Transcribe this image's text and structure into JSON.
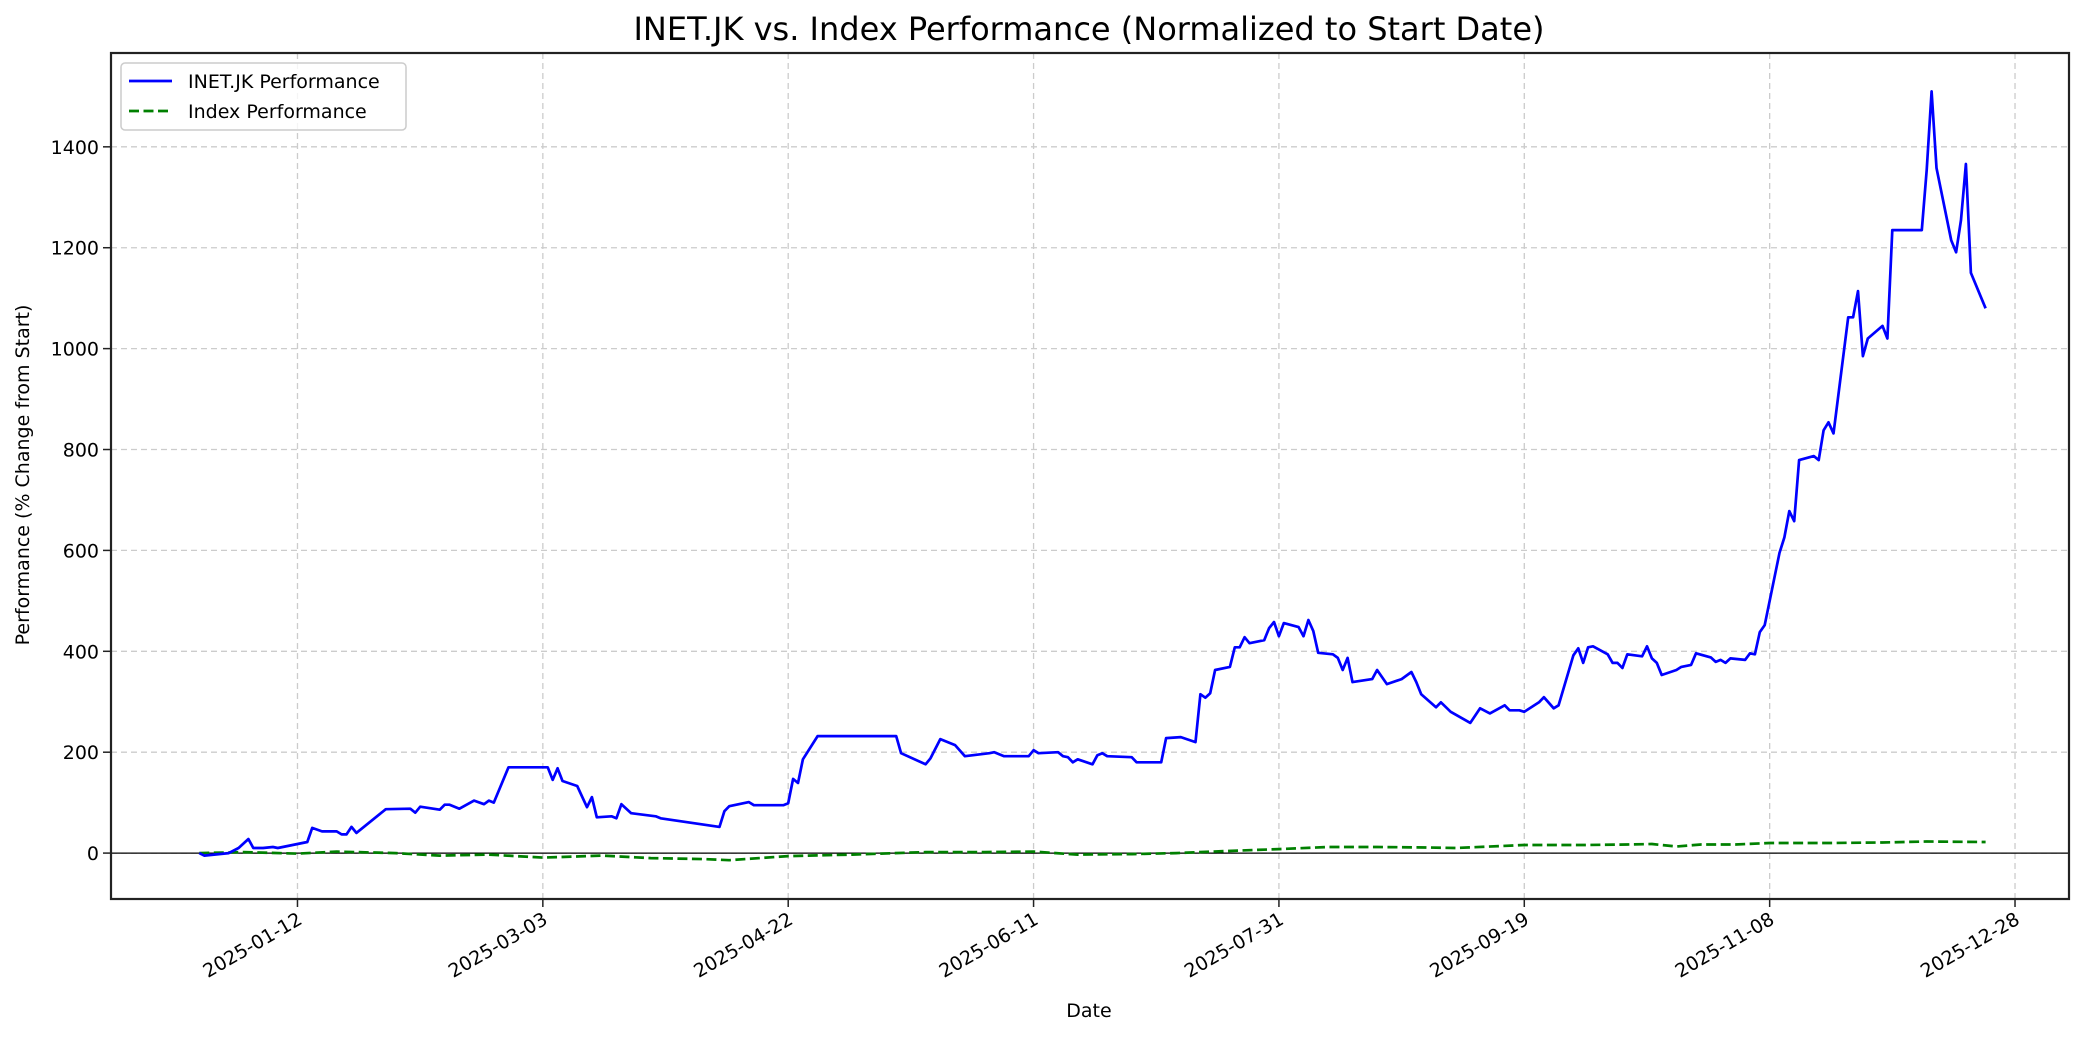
{
  "chart_data": {
    "type": "line",
    "title": "INET.JK vs. Index Performance (Normalized to Start Date)",
    "xlabel": "Date",
    "ylabel": "Performance (% Change from Start)",
    "xlim": [
      "2024-12-05",
      "2026-01-08"
    ],
    "ylim": [
      -91,
      1586
    ],
    "grid": true,
    "legend_position": "upper left",
    "x_ticks": [
      "2025-01-12",
      "2025-03-03",
      "2025-04-22",
      "2025-06-11",
      "2025-07-31",
      "2025-09-19",
      "2025-11-08",
      "2025-12-28"
    ],
    "y_ticks": [
      0,
      200,
      400,
      600,
      800,
      1000,
      1200,
      1400
    ],
    "zero_line": true,
    "series": [
      {
        "name": "INET.JK Performance",
        "color": "#0000ff",
        "style": "solid",
        "points": [
          [
            "2024-12-23",
            0
          ],
          [
            "2024-12-24",
            -5
          ],
          [
            "2024-12-29",
            0
          ],
          [
            "2024-12-31",
            10
          ],
          [
            "2025-01-02",
            28
          ],
          [
            "2025-01-03",
            10
          ],
          [
            "2025-01-05",
            10
          ],
          [
            "2025-01-07",
            12
          ],
          [
            "2025-01-08",
            10
          ],
          [
            "2025-01-12",
            18
          ],
          [
            "2025-01-14",
            22
          ],
          [
            "2025-01-15",
            50
          ],
          [
            "2025-01-17",
            43
          ],
          [
            "2025-01-20",
            43
          ],
          [
            "2025-01-21",
            37
          ],
          [
            "2025-01-22",
            37
          ],
          [
            "2025-01-23",
            52
          ],
          [
            "2025-01-24",
            40
          ],
          [
            "2025-01-30",
            87
          ],
          [
            "2025-02-04",
            88
          ],
          [
            "2025-02-05",
            80
          ],
          [
            "2025-02-06",
            92
          ],
          [
            "2025-02-10",
            86
          ],
          [
            "2025-02-11",
            96
          ],
          [
            "2025-02-12",
            96
          ],
          [
            "2025-02-14",
            88
          ],
          [
            "2025-02-17",
            104
          ],
          [
            "2025-02-19",
            97
          ],
          [
            "2025-02-20",
            104
          ],
          [
            "2025-02-21",
            100
          ],
          [
            "2025-02-24",
            170
          ],
          [
            "2025-03-04",
            170
          ],
          [
            "2025-03-05",
            145
          ],
          [
            "2025-03-06",
            168
          ],
          [
            "2025-03-07",
            143
          ],
          [
            "2025-03-10",
            133
          ],
          [
            "2025-03-12",
            91
          ],
          [
            "2025-03-13",
            111
          ],
          [
            "2025-03-14",
            71
          ],
          [
            "2025-03-17",
            73
          ],
          [
            "2025-03-18",
            69
          ],
          [
            "2025-03-19",
            97
          ],
          [
            "2025-03-21",
            79
          ],
          [
            "2025-03-26",
            73
          ],
          [
            "2025-03-27",
            69
          ],
          [
            "2025-04-08",
            52
          ],
          [
            "2025-04-09",
            83
          ],
          [
            "2025-04-10",
            93
          ],
          [
            "2025-04-14",
            101
          ],
          [
            "2025-04-15",
            95
          ],
          [
            "2025-04-21",
            95
          ],
          [
            "2025-04-22",
            99
          ],
          [
            "2025-04-23",
            147
          ],
          [
            "2025-04-24",
            139
          ],
          [
            "2025-04-25",
            186
          ],
          [
            "2025-04-28",
            232
          ],
          [
            "2025-05-14",
            232
          ],
          [
            "2025-05-15",
            198
          ],
          [
            "2025-05-20",
            176
          ],
          [
            "2025-05-21",
            188
          ],
          [
            "2025-05-23",
            226
          ],
          [
            "2025-05-26",
            214
          ],
          [
            "2025-05-28",
            192
          ],
          [
            "2025-06-02",
            198
          ],
          [
            "2025-06-03",
            200
          ],
          [
            "2025-06-05",
            192
          ],
          [
            "2025-06-10",
            192
          ],
          [
            "2025-06-11",
            204
          ],
          [
            "2025-06-12",
            198
          ],
          [
            "2025-06-16",
            200
          ],
          [
            "2025-06-17",
            192
          ],
          [
            "2025-06-18",
            190
          ],
          [
            "2025-06-19",
            180
          ],
          [
            "2025-06-20",
            186
          ],
          [
            "2025-06-23",
            176
          ],
          [
            "2025-06-24",
            194
          ],
          [
            "2025-06-25",
            198
          ],
          [
            "2025-06-26",
            192
          ],
          [
            "2025-07-01",
            190
          ],
          [
            "2025-07-02",
            180
          ],
          [
            "2025-07-07",
            180
          ],
          [
            "2025-07-08",
            228
          ],
          [
            "2025-07-11",
            230
          ],
          [
            "2025-07-14",
            220
          ],
          [
            "2025-07-15",
            315
          ],
          [
            "2025-07-16",
            308
          ],
          [
            "2025-07-17",
            317
          ],
          [
            "2025-07-18",
            363
          ],
          [
            "2025-07-21",
            369
          ],
          [
            "2025-07-22",
            408
          ],
          [
            "2025-07-23",
            408
          ],
          [
            "2025-07-24",
            428
          ],
          [
            "2025-07-25",
            416
          ],
          [
            "2025-07-28",
            422
          ],
          [
            "2025-07-29",
            446
          ],
          [
            "2025-07-30",
            458
          ],
          [
            "2025-07-31",
            430
          ],
          [
            "2025-08-01",
            456
          ],
          [
            "2025-08-04",
            448
          ],
          [
            "2025-08-05",
            430
          ],
          [
            "2025-08-06",
            462
          ],
          [
            "2025-08-07",
            440
          ],
          [
            "2025-08-08",
            397
          ],
          [
            "2025-08-11",
            394
          ],
          [
            "2025-08-12",
            387
          ],
          [
            "2025-08-13",
            363
          ],
          [
            "2025-08-14",
            387
          ],
          [
            "2025-08-15",
            339
          ],
          [
            "2025-08-19",
            345
          ],
          [
            "2025-08-20",
            363
          ],
          [
            "2025-08-22",
            335
          ],
          [
            "2025-08-25",
            345
          ],
          [
            "2025-08-27",
            359
          ],
          [
            "2025-08-28",
            339
          ],
          [
            "2025-08-29",
            315
          ],
          [
            "2025-09-01",
            289
          ],
          [
            "2025-09-02",
            299
          ],
          [
            "2025-09-04",
            280
          ],
          [
            "2025-09-08",
            258
          ],
          [
            "2025-09-10",
            287
          ],
          [
            "2025-09-12",
            277
          ],
          [
            "2025-09-15",
            293
          ],
          [
            "2025-09-16",
            283
          ],
          [
            "2025-09-18",
            283
          ],
          [
            "2025-09-19",
            280
          ],
          [
            "2025-09-22",
            299
          ],
          [
            "2025-09-23",
            309
          ],
          [
            "2025-09-25",
            287
          ],
          [
            "2025-09-26",
            293
          ],
          [
            "2025-09-29",
            392
          ],
          [
            "2025-09-30",
            406
          ],
          [
            "2025-10-01",
            377
          ],
          [
            "2025-10-02",
            408
          ],
          [
            "2025-10-03",
            410
          ],
          [
            "2025-10-06",
            394
          ],
          [
            "2025-10-07",
            377
          ],
          [
            "2025-10-08",
            377
          ],
          [
            "2025-10-09",
            367
          ],
          [
            "2025-10-10",
            394
          ],
          [
            "2025-10-13",
            390
          ],
          [
            "2025-10-14",
            410
          ],
          [
            "2025-10-15",
            386
          ],
          [
            "2025-10-16",
            377
          ],
          [
            "2025-10-17",
            353
          ],
          [
            "2025-10-20",
            363
          ],
          [
            "2025-10-21",
            369
          ],
          [
            "2025-10-23",
            373
          ],
          [
            "2025-10-24",
            396
          ],
          [
            "2025-10-27",
            388
          ],
          [
            "2025-10-28",
            379
          ],
          [
            "2025-10-29",
            383
          ],
          [
            "2025-10-30",
            377
          ],
          [
            "2025-10-31",
            386
          ],
          [
            "2025-11-03",
            383
          ],
          [
            "2025-11-04",
            396
          ],
          [
            "2025-11-05",
            394
          ],
          [
            "2025-11-06",
            438
          ],
          [
            "2025-11-07",
            452
          ],
          [
            "2025-11-10",
            595
          ],
          [
            "2025-11-11",
            626
          ],
          [
            "2025-11-12",
            678
          ],
          [
            "2025-11-13",
            658
          ],
          [
            "2025-11-14",
            779
          ],
          [
            "2025-11-17",
            787
          ],
          [
            "2025-11-18",
            779
          ],
          [
            "2025-11-19",
            838
          ],
          [
            "2025-11-20",
            854
          ],
          [
            "2025-11-21",
            832
          ],
          [
            "2025-11-24",
            1062
          ],
          [
            "2025-11-25",
            1062
          ],
          [
            "2025-11-26",
            1114
          ],
          [
            "2025-11-27",
            985
          ],
          [
            "2025-11-28",
            1020
          ],
          [
            "2025-12-01",
            1045
          ],
          [
            "2025-12-02",
            1020
          ],
          [
            "2025-12-03",
            1235
          ],
          [
            "2025-12-09",
            1235
          ],
          [
            "2025-12-10",
            1354
          ],
          [
            "2025-12-11",
            1510
          ],
          [
            "2025-12-12",
            1358
          ],
          [
            "2025-12-15",
            1215
          ],
          [
            "2025-12-16",
            1191
          ],
          [
            "2025-12-17",
            1255
          ],
          [
            "2025-12-18",
            1366
          ],
          [
            "2025-12-19",
            1150
          ],
          [
            "2025-12-22",
            1080
          ]
        ]
      },
      {
        "name": "Index Performance",
        "color": "#008000",
        "style": "dashed",
        "points": [
          [
            "2024-12-23",
            0
          ],
          [
            "2025-01-01",
            2
          ],
          [
            "2025-01-12",
            -1
          ],
          [
            "2025-01-20",
            3
          ],
          [
            "2025-02-01",
            0
          ],
          [
            "2025-02-10",
            -5
          ],
          [
            "2025-02-20",
            -3
          ],
          [
            "2025-03-03",
            -9
          ],
          [
            "2025-03-15",
            -5
          ],
          [
            "2025-03-25",
            -10
          ],
          [
            "2025-04-05",
            -12
          ],
          [
            "2025-04-10",
            -14
          ],
          [
            "2025-04-22",
            -6
          ],
          [
            "2025-05-05",
            -3
          ],
          [
            "2025-05-20",
            2
          ],
          [
            "2025-06-01",
            2
          ],
          [
            "2025-06-11",
            3
          ],
          [
            "2025-06-20",
            -3
          ],
          [
            "2025-07-01",
            -2
          ],
          [
            "2025-07-10",
            0
          ],
          [
            "2025-07-20",
            4
          ],
          [
            "2025-07-31",
            8
          ],
          [
            "2025-08-10",
            12
          ],
          [
            "2025-08-20",
            12
          ],
          [
            "2025-08-30",
            11
          ],
          [
            "2025-09-05",
            10
          ],
          [
            "2025-09-19",
            16
          ],
          [
            "2025-10-01",
            16
          ],
          [
            "2025-10-10",
            17
          ],
          [
            "2025-10-15",
            18
          ],
          [
            "2025-10-20",
            13
          ],
          [
            "2025-10-25",
            17
          ],
          [
            "2025-11-01",
            17
          ],
          [
            "2025-11-08",
            20
          ],
          [
            "2025-11-20",
            20
          ],
          [
            "2025-12-01",
            21
          ],
          [
            "2025-12-10",
            23
          ],
          [
            "2025-12-22",
            22
          ]
        ]
      }
    ]
  },
  "legend": {
    "items": [
      {
        "label": "INET.JK Performance",
        "color": "#0000ff",
        "style": "solid"
      },
      {
        "label": "Index Performance",
        "color": "#008000",
        "style": "dashed"
      }
    ]
  }
}
